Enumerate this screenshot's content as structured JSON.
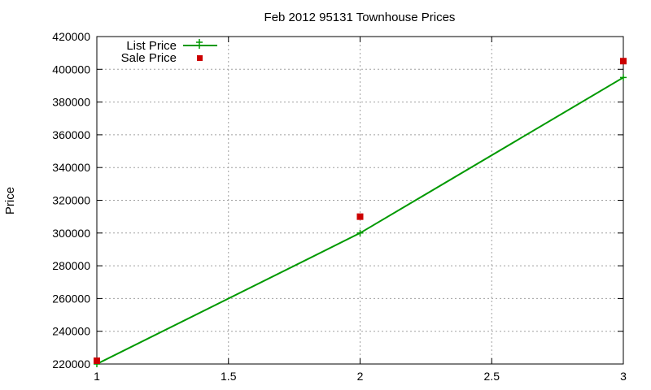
{
  "chart_data": {
    "type": "line",
    "title": "Feb 2012 95131 Townhouse Prices",
    "xlabel": "",
    "ylabel": "Price",
    "xlim": [
      1,
      3
    ],
    "ylim": [
      220000,
      420000
    ],
    "xticks": [
      "1",
      "1.5",
      "2",
      "2.5",
      "3"
    ],
    "yticks": [
      "220000",
      "240000",
      "260000",
      "280000",
      "300000",
      "320000",
      "340000",
      "360000",
      "380000",
      "400000",
      "420000"
    ],
    "grid": true,
    "legend_position": "top-left",
    "series": [
      {
        "name": "List Price",
        "style": "linespoints",
        "marker": "plus",
        "color": "#009900",
        "x": [
          1,
          2,
          3
        ],
        "y": [
          220000,
          300000,
          395000
        ]
      },
      {
        "name": "Sale Price",
        "style": "points",
        "marker": "square",
        "color": "#cc0000",
        "x": [
          1,
          2,
          3
        ],
        "y": [
          222000,
          310000,
          405000
        ]
      }
    ]
  }
}
